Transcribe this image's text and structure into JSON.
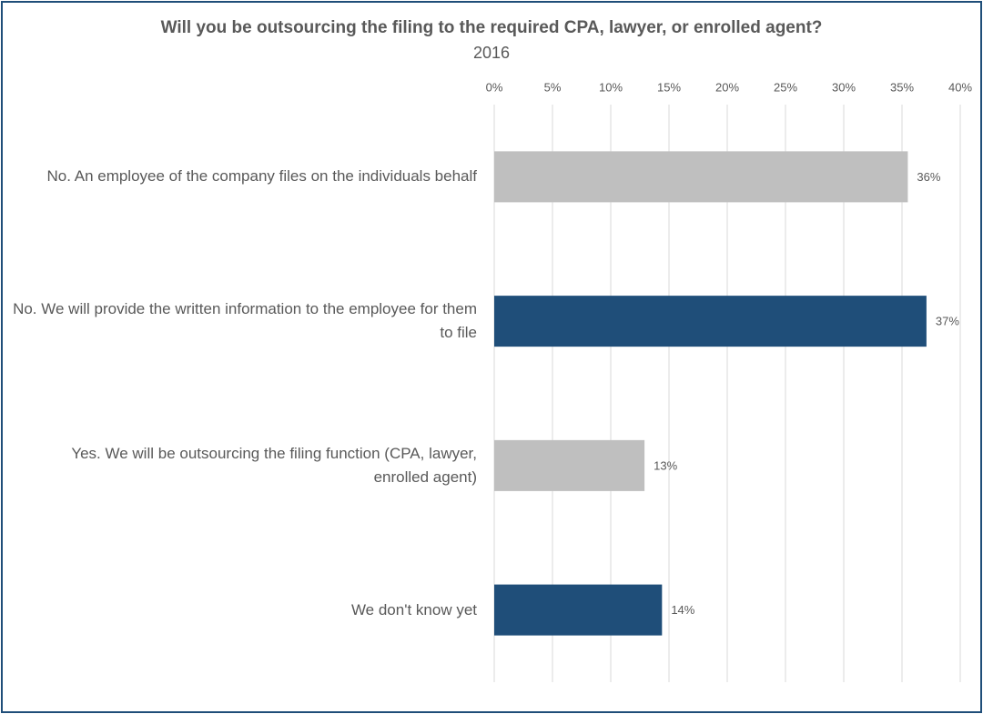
{
  "chart_data": {
    "type": "bar",
    "orientation": "horizontal",
    "title": "Will you be outsourcing the filing to the required CPA, lawyer, or enrolled agent?",
    "subtitle": "2016",
    "categories": [
      "No. An employee of the company files on the individuals behalf",
      "No. We will provide the written information to the employee for them to file",
      "Yes. We will be outsourcing the filing function (CPA, lawyer, enrolled agent)",
      "We don't know yet"
    ],
    "values": [
      35.5,
      37.1,
      12.9,
      14.4
    ],
    "value_labels": [
      "36%",
      "37%",
      "13%",
      "14%"
    ],
    "colors": [
      "#bfbfbf",
      "#1f4e79",
      "#bfbfbf",
      "#1f4e79"
    ],
    "xlim": [
      0,
      40
    ],
    "xticks": [
      {
        "value": 0,
        "label": "0%"
      },
      {
        "value": 5,
        "label": "5%"
      },
      {
        "value": 10,
        "label": "10%"
      },
      {
        "value": 15,
        "label": "15%"
      },
      {
        "value": 20,
        "label": "20%"
      },
      {
        "value": 25,
        "label": "25%"
      },
      {
        "value": 30,
        "label": "30%"
      },
      {
        "value": 35,
        "label": "35%"
      },
      {
        "value": 40,
        "label": "40%"
      }
    ],
    "grid": true
  }
}
